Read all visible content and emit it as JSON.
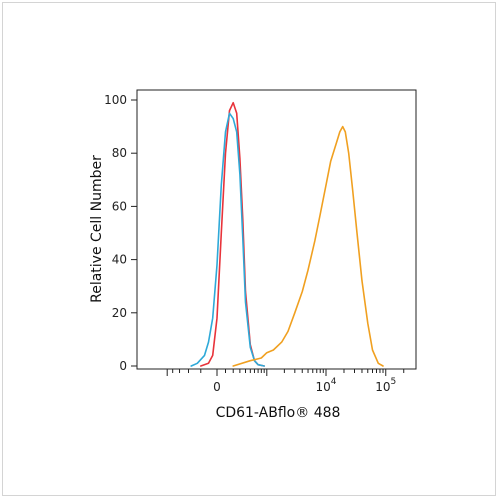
{
  "chart_data": {
    "type": "line",
    "title": "",
    "xlabel": "CD61-ABflo® 488",
    "ylabel": "Relative Cell Number",
    "xscale": "biexponential",
    "x_tick_labels": [
      {
        "label": "0",
        "value": 0
      },
      {
        "label": "10",
        "sup": "4",
        "value": 10000
      },
      {
        "label": "10",
        "sup": "5",
        "value": 100000
      }
    ],
    "y_tick_labels": [
      "0",
      "20",
      "40",
      "60",
      "80",
      "100"
    ],
    "ylim": [
      0,
      100
    ],
    "grid": false,
    "legend": "none",
    "series": [
      {
        "color": "#e8333a",
        "x": [
          -200,
          -100,
          -50,
          0,
          50,
          100,
          150,
          200,
          250,
          300,
          350,
          400,
          500,
          600,
          700,
          900
        ],
        "y": [
          0,
          1,
          4,
          18,
          50,
          80,
          96,
          99,
          95,
          78,
          55,
          28,
          8,
          2,
          0.5,
          0
        ]
      },
      {
        "color": "#2ea9d8",
        "x": [
          -350,
          -250,
          -150,
          -100,
          -50,
          0,
          50,
          100,
          150,
          200,
          250,
          300,
          350,
          400,
          500,
          600,
          700,
          900
        ],
        "y": [
          0,
          1,
          4,
          9,
          18,
          38,
          68,
          88,
          95,
          93,
          88,
          72,
          48,
          24,
          7,
          2,
          0.5,
          0
        ]
      },
      {
        "color": "#f0a020",
        "x": [
          200,
          500,
          800,
          1000,
          1300,
          1800,
          2300,
          3000,
          4000,
          5000,
          6500,
          8000,
          10000,
          12000,
          15000,
          17000,
          19000,
          21000,
          24000,
          28000,
          33000,
          40000,
          50000,
          60000,
          75000,
          90000
        ],
        "y": [
          0,
          2,
          3,
          5,
          6,
          9,
          13,
          20,
          28,
          36,
          47,
          57,
          68,
          77,
          84,
          88,
          90,
          88,
          80,
          66,
          50,
          32,
          16,
          6,
          1,
          0
        ]
      }
    ]
  }
}
